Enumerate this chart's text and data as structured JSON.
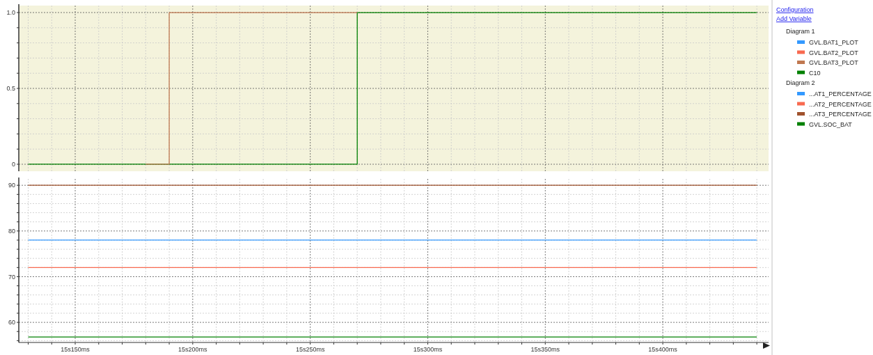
{
  "chart_data": [
    {
      "type": "step",
      "legend_title": "Diagram 1",
      "annotations": [
        "Configuration",
        "Add Variable"
      ],
      "legend": "right",
      "grid": true,
      "tick_labels": "y",
      "line_style": "solid",
      "categories": [
        null,
        null,
        null,
        null,
        null,
        null,
        null,
        null,
        null,
        null,
        null,
        null,
        null,
        null,
        null,
        null,
        null,
        null,
        null,
        null,
        null,
        null,
        null,
        null,
        null,
        null,
        null,
        null,
        null,
        null,
        null,
        null
      ],
      "ylim": [
        -0.046,
        1.046
      ],
      "yticks": [
        0,
        {
          "value": 0.1,
          "label": null
        },
        {
          "value": 0.2,
          "label": null
        },
        {
          "value": 0.3,
          "label": null
        },
        {
          "value": 0.4,
          "label": null
        },
        0.5,
        {
          "value": 0.6,
          "label": null
        },
        {
          "value": 0.7,
          "label": null
        },
        {
          "value": 0.8,
          "label": null
        },
        {
          "value": 0.9,
          "label": null
        },
        {
          "value": 1,
          "label": "1.0"
        }
      ],
      "series": [
        {
          "name": "GVL.BAT1_PLOT",
          "color": "#3399ff",
          "values": [
            null,
            null,
            null,
            null,
            null,
            null,
            null,
            null,
            null,
            null,
            null,
            null,
            null,
            null,
            null,
            null,
            null,
            null,
            null,
            null,
            null,
            null,
            null,
            null,
            null,
            null,
            null,
            null,
            null,
            null,
            null,
            null
          ]
        },
        {
          "name": "GVL.BAT2_PLOT",
          "color": "#f86a50",
          "values": [
            null,
            null,
            null,
            null,
            null,
            null,
            null,
            null,
            null,
            null,
            null,
            null,
            null,
            null,
            null,
            null,
            null,
            null,
            null,
            null,
            null,
            null,
            null,
            null,
            null,
            null,
            null,
            null,
            null,
            null,
            null,
            null
          ]
        },
        {
          "name": "GVL.BAT3_PLOT",
          "color": "#c07850",
          "values": [
            null,
            null,
            null,
            null,
            null,
            0,
            1,
            1,
            1,
            1,
            1,
            1,
            1,
            1,
            1,
            null,
            null,
            null,
            null,
            null,
            null,
            null,
            null,
            null,
            null,
            null,
            null,
            null,
            null,
            null,
            null,
            null
          ]
        },
        {
          "name": "C10",
          "color": "#008000",
          "values": [
            0,
            0,
            0,
            0,
            0,
            0,
            0,
            0,
            0,
            0,
            0,
            0,
            0,
            0,
            1,
            1,
            1,
            1,
            1,
            1,
            1,
            1,
            1,
            1,
            1,
            1,
            1,
            1,
            1,
            1,
            1,
            1
          ]
        }
      ]
    },
    {
      "type": "step",
      "legend_title": "Diagram 2",
      "legend": "right",
      "grid": true,
      "line_style": "solid",
      "categories": [
        null,
        null,
        "15s150ms",
        null,
        null,
        null,
        null,
        "15s200ms",
        null,
        null,
        null,
        null,
        "15s250ms",
        null,
        null,
        null,
        null,
        "15s300ms",
        null,
        null,
        null,
        null,
        "15s350ms",
        null,
        null,
        null,
        null,
        "15s400ms",
        null,
        null,
        null,
        null
      ],
      "ylim": [
        55.6,
        91.4
      ],
      "yticks": [
        {
          "value": 56,
          "label": null
        },
        {
          "value": 58,
          "label": null
        },
        60,
        {
          "value": 62,
          "label": null
        },
        {
          "value": 64,
          "label": null
        },
        {
          "value": 66,
          "label": null
        },
        {
          "value": 68,
          "label": null
        },
        70,
        {
          "value": 72,
          "label": null
        },
        {
          "value": 74,
          "label": null
        },
        {
          "value": 76,
          "label": null
        },
        {
          "value": 78,
          "label": null
        },
        80,
        {
          "value": 82,
          "label": null
        },
        {
          "value": 84,
          "label": null
        },
        {
          "value": 86,
          "label": null
        },
        {
          "value": 88,
          "label": null
        },
        90
      ],
      "series": [
        {
          "name": "...AT1_PERCENTAGE",
          "color": "#3399ff",
          "values": [
            78,
            78,
            78,
            78,
            78,
            78,
            78,
            78,
            78,
            78,
            78,
            78,
            78,
            78,
            78,
            78,
            78,
            78,
            78,
            78,
            78,
            78,
            78,
            78,
            78,
            78,
            78,
            78,
            78,
            78,
            78,
            78
          ]
        },
        {
          "name": "...AT2_PERCENTAGE",
          "color": "#f86a50",
          "values": [
            72,
            72,
            72,
            72,
            72,
            72,
            72,
            72,
            72,
            72,
            72,
            72,
            72,
            72,
            72,
            72,
            72,
            72,
            72,
            72,
            72,
            72,
            72,
            72,
            72,
            72,
            72,
            72,
            72,
            72,
            72,
            72
          ]
        },
        {
          "name": "...AT3_PERCENTAGE",
          "color": "#a0522d",
          "values": [
            90,
            90,
            90,
            90,
            90,
            90,
            90,
            90,
            90,
            90,
            90,
            90,
            90,
            90,
            90,
            90,
            90,
            90,
            90,
            90,
            90,
            90,
            90,
            90,
            90,
            90,
            90,
            90,
            90,
            90,
            90,
            90
          ]
        },
        {
          "name": "GVL.SOC_BAT",
          "color": "#008000",
          "values": [
            56.8,
            56.8,
            56.8,
            56.8,
            56.8,
            56.8,
            56.8,
            56.8,
            56.8,
            56.8,
            56.8,
            56.8,
            56.8,
            56.8,
            56.8,
            56.8,
            56.8,
            56.8,
            56.8,
            56.8,
            56.8,
            56.8,
            56.8,
            56.8,
            56.8,
            56.8,
            56.8,
            56.8,
            56.8,
            56.8,
            56.8,
            56.8
          ]
        }
      ]
    }
  ]
}
